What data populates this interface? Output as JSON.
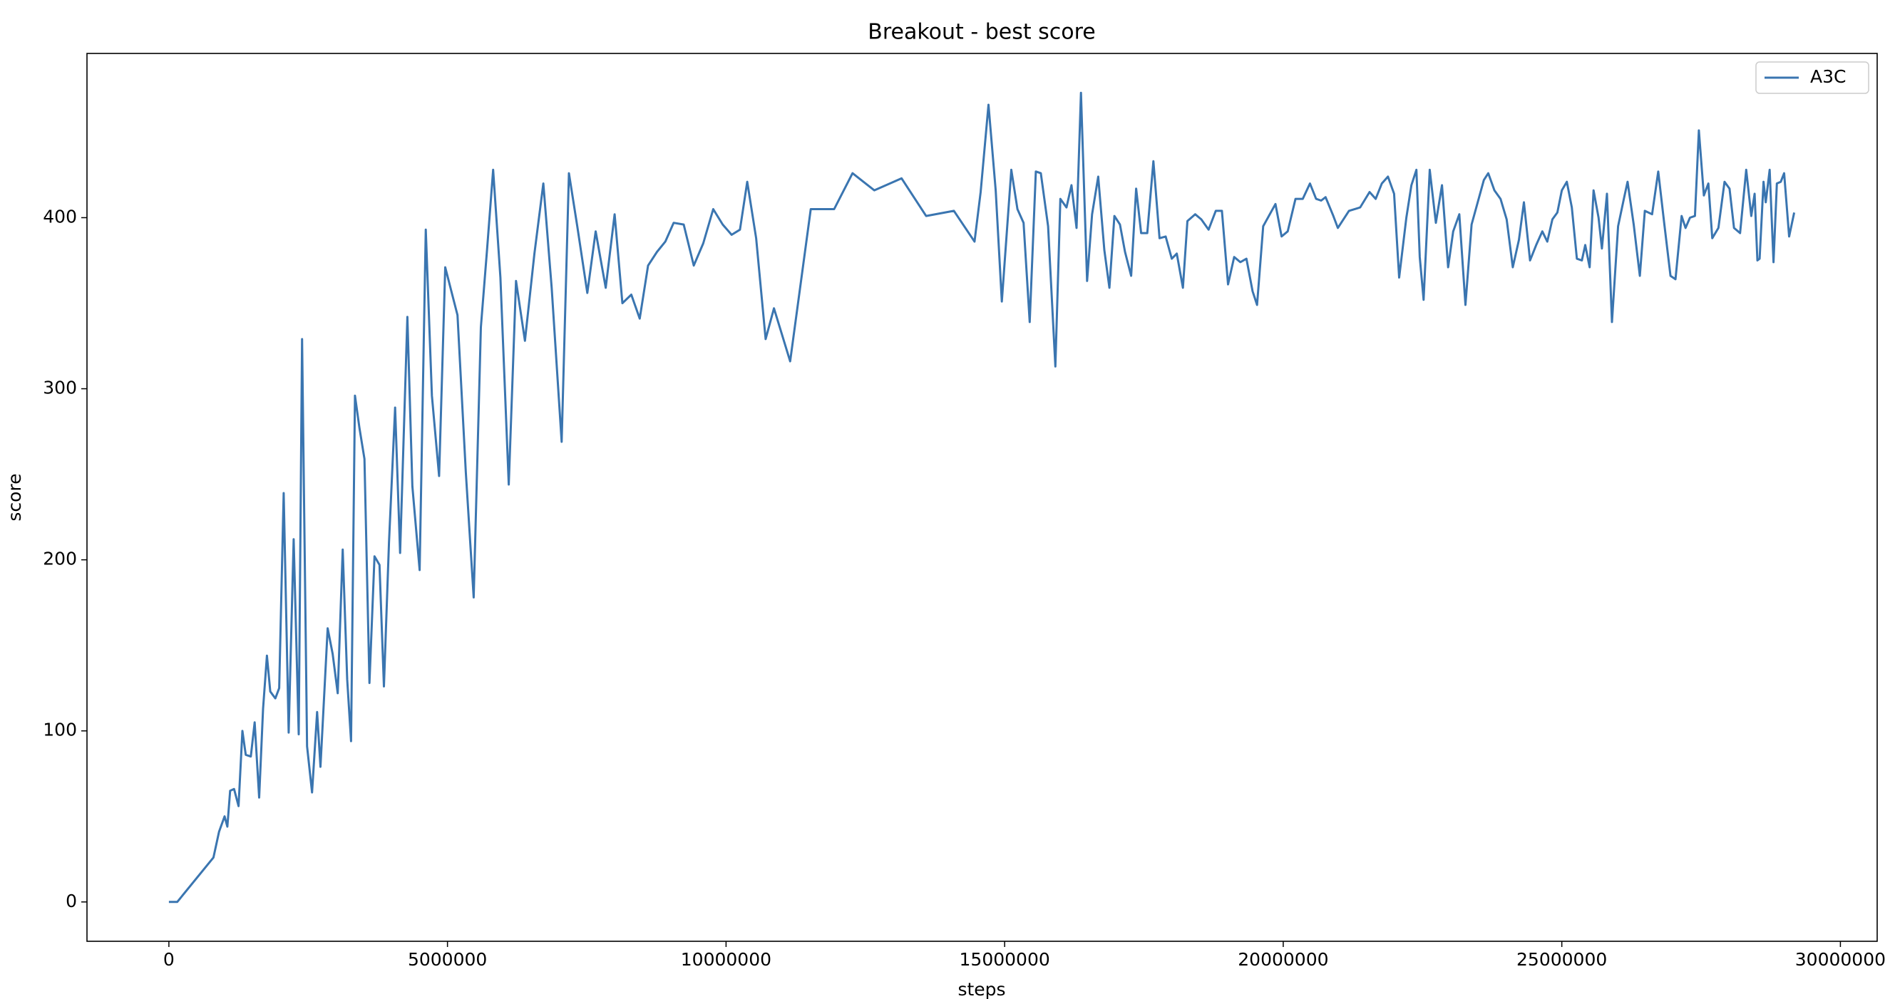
{
  "chart_data": {
    "type": "line",
    "title": "Breakout - best score",
    "xlabel": "steps",
    "ylabel": "score",
    "x": [
      0,
      150000,
      800000,
      900000,
      1000000,
      1050000,
      1100000,
      1170000,
      1250000,
      1320000,
      1380000,
      1470000,
      1540000,
      1620000,
      1690000,
      1760000,
      1820000,
      1910000,
      1980000,
      2060000,
      2150000,
      2240000,
      2330000,
      2390000,
      2480000,
      2570000,
      2660000,
      2720000,
      2850000,
      2940000,
      3030000,
      3120000,
      3200000,
      3270000,
      3340000,
      3420000,
      3510000,
      3600000,
      3690000,
      3780000,
      3860000,
      3950000,
      4060000,
      4150000,
      4280000,
      4370000,
      4500000,
      4610000,
      4720000,
      4850000,
      4960000,
      5180000,
      5330000,
      5470000,
      5600000,
      5710000,
      5820000,
      5950000,
      6100000,
      6230000,
      6390000,
      6560000,
      6720000,
      6870000,
      7050000,
      7180000,
      7330000,
      7510000,
      7660000,
      7840000,
      8000000,
      8140000,
      8300000,
      8450000,
      8600000,
      8760000,
      8910000,
      9060000,
      9240000,
      9420000,
      9590000,
      9770000,
      9940000,
      10100000,
      10250000,
      10380000,
      10540000,
      10710000,
      10860000,
      11150000,
      11520000,
      11940000,
      12270000,
      12660000,
      13150000,
      13590000,
      14090000,
      14460000,
      14570000,
      14710000,
      14840000,
      14950000,
      15120000,
      15230000,
      15340000,
      15450000,
      15560000,
      15650000,
      15780000,
      15910000,
      16000000,
      16110000,
      16200000,
      16290000,
      16370000,
      16480000,
      16570000,
      16680000,
      16790000,
      16880000,
      16970000,
      17070000,
      17160000,
      17270000,
      17360000,
      17450000,
      17560000,
      17670000,
      17780000,
      17890000,
      18000000,
      18090000,
      18200000,
      18280000,
      18420000,
      18530000,
      18660000,
      18790000,
      18900000,
      19010000,
      19120000,
      19230000,
      19340000,
      19450000,
      19530000,
      19640000,
      19860000,
      19970000,
      20080000,
      20220000,
      20350000,
      20480000,
      20590000,
      20680000,
      20760000,
      20900000,
      20980000,
      21180000,
      21380000,
      21550000,
      21660000,
      21770000,
      21880000,
      21990000,
      22080000,
      22210000,
      22300000,
      22390000,
      22450000,
      22520000,
      22630000,
      22740000,
      22850000,
      22960000,
      23050000,
      23160000,
      23270000,
      23380000,
      23490000,
      23600000,
      23680000,
      23790000,
      23900000,
      24010000,
      24120000,
      24230000,
      24320000,
      24430000,
      24540000,
      24650000,
      24740000,
      24830000,
      24920000,
      25000000,
      25090000,
      25180000,
      25270000,
      25360000,
      25420000,
      25500000,
      25570000,
      25660000,
      25720000,
      25810000,
      25900000,
      26010000,
      26120000,
      26180000,
      26290000,
      26400000,
      26490000,
      26620000,
      26730000,
      26840000,
      26950000,
      27040000,
      27150000,
      27220000,
      27300000,
      27390000,
      27460000,
      27550000,
      27630000,
      27700000,
      27810000,
      27920000,
      28010000,
      28090000,
      28200000,
      28310000,
      28400000,
      28460000,
      28510000,
      28550000,
      28620000,
      28660000,
      28730000,
      28800000,
      28860000,
      28930000,
      28990000,
      29080000,
      29170000
    ],
    "series": [
      {
        "name": "A3C",
        "color": "#3a75b0",
        "values": [
          0,
          0,
          26,
          41,
          50,
          44,
          65,
          66,
          56,
          100,
          86,
          85,
          105,
          61,
          113,
          144,
          123,
          119,
          125,
          239,
          99,
          212,
          98,
          329,
          91,
          64,
          111,
          79,
          160,
          145,
          122,
          206,
          130,
          94,
          296,
          277,
          259,
          128,
          202,
          197,
          126,
          210,
          289,
          204,
          342,
          243,
          194,
          393,
          296,
          249,
          371,
          343,
          251,
          178,
          336,
          381,
          428,
          365,
          244,
          363,
          328,
          379,
          420,
          359,
          269,
          426,
          395,
          356,
          392,
          359,
          402,
          350,
          355,
          341,
          372,
          380,
          386,
          397,
          396,
          372,
          385,
          405,
          396,
          390,
          393,
          421,
          388,
          329,
          347,
          316,
          405,
          405,
          426,
          416,
          423,
          401,
          404,
          386,
          415,
          466,
          416,
          351,
          428,
          405,
          397,
          339,
          427,
          426,
          395,
          313,
          411,
          406,
          419,
          394,
          473,
          363,
          402,
          424,
          381,
          359,
          401,
          396,
          380,
          366,
          417,
          391,
          391,
          433,
          388,
          389,
          376,
          379,
          359,
          398,
          402,
          399,
          393,
          404,
          404,
          361,
          377,
          374,
          376,
          357,
          349,
          395,
          408,
          389,
          392,
          411,
          411,
          420,
          411,
          410,
          412,
          401,
          394,
          404,
          406,
          415,
          411,
          420,
          424,
          414,
          365,
          400,
          419,
          428,
          377,
          352,
          428,
          397,
          419,
          371,
          392,
          402,
          349,
          396,
          409,
          422,
          426,
          416,
          411,
          399,
          371,
          387,
          409,
          375,
          384,
          392,
          386,
          399,
          403,
          416,
          421,
          406,
          376,
          375,
          384,
          371,
          416,
          400,
          382,
          414,
          339,
          395,
          412,
          421,
          396,
          366,
          404,
          402,
          427,
          396,
          366,
          364,
          401,
          394,
          400,
          401,
          451,
          413,
          420,
          388,
          394,
          421,
          417,
          394,
          391,
          428,
          401,
          414,
          375,
          376,
          421,
          409,
          428,
          374,
          420,
          421,
          426,
          389,
          403
        ]
      }
    ],
    "xlim": [
      -1470000,
      30660000
    ],
    "xticks": [
      0,
      5000000,
      10000000,
      15000000,
      20000000,
      25000000,
      30000000
    ],
    "ylim": [
      -23,
      496
    ],
    "yticks": [
      0,
      100,
      200,
      300,
      400
    ],
    "grid": false,
    "legend": "upper right"
  }
}
